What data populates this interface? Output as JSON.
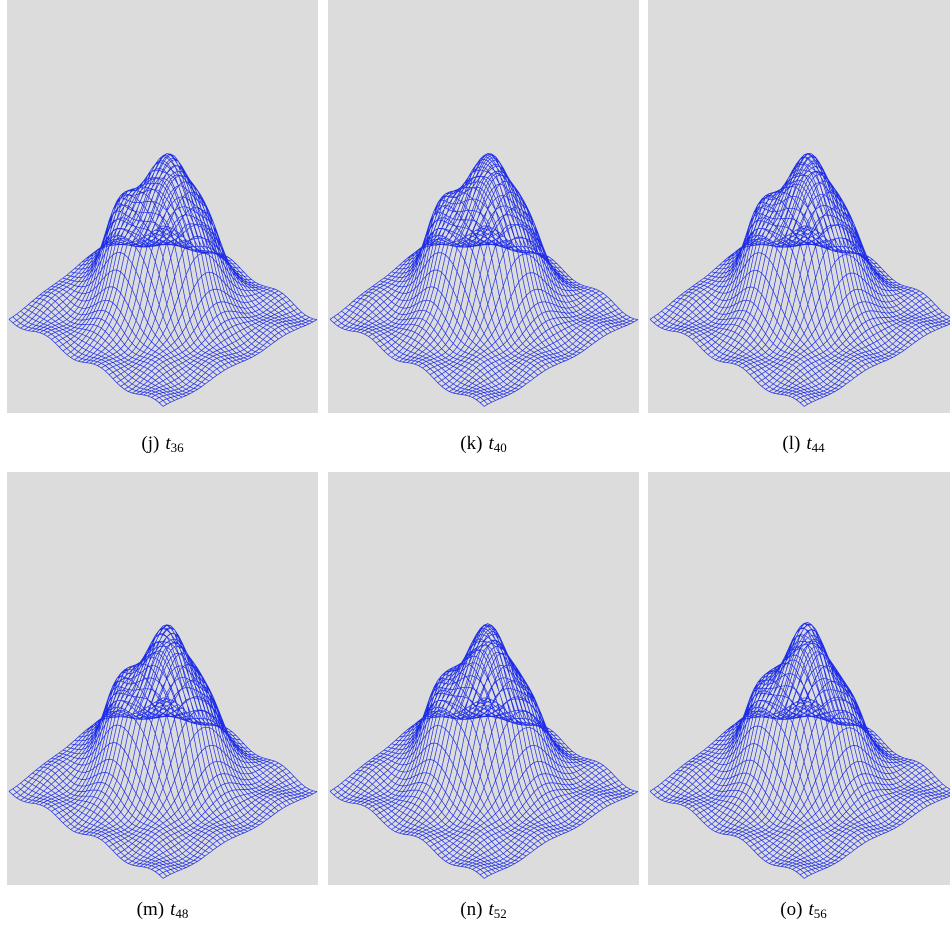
{
  "panels": [
    {
      "label": "(j)",
      "symbol": "t",
      "subscript": "36"
    },
    {
      "label": "(k)",
      "symbol": "t",
      "subscript": "40"
    },
    {
      "label": "(l)",
      "symbol": "t",
      "subscript": "44"
    },
    {
      "label": "(m)",
      "symbol": "t",
      "subscript": "48"
    },
    {
      "label": "(n)",
      "symbol": "t",
      "subscript": "52"
    },
    {
      "label": "(o)",
      "symbol": "t",
      "subscript": "56"
    }
  ]
}
